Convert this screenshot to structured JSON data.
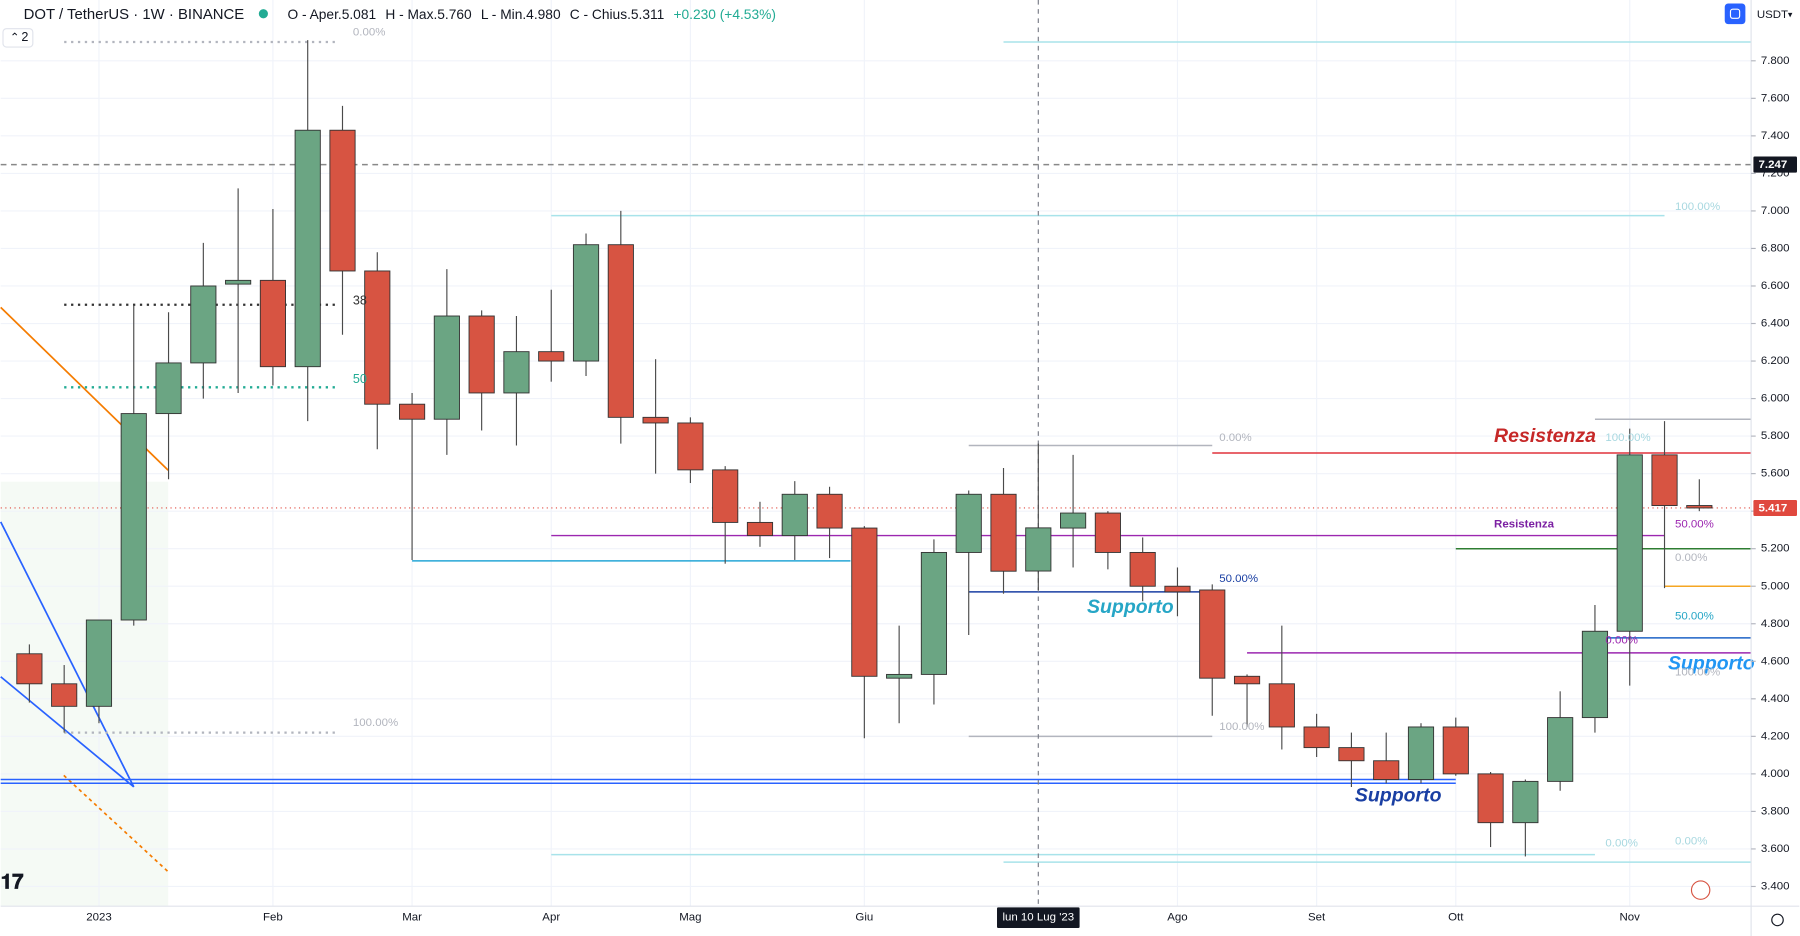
{
  "header": {
    "symbol": "DOT / TetherUS · 1W · BINANCE",
    "ohlc": [
      "O - Aper.5.081",
      "H - Max.5.760",
      "L - Min.4.980",
      "C - Chius.5.311",
      "+0.230 (+4.53%)"
    ],
    "indicator_count": "2",
    "currency": "USDT"
  },
  "chart_data": {
    "type": "candlestick",
    "categories": [
      null,
      null,
      "2023",
      null,
      null,
      null,
      null,
      "Feb",
      null,
      null,
      null,
      "Mar",
      null,
      null,
      null,
      "Apr",
      null,
      null,
      null,
      "Mag",
      null,
      null,
      null,
      null,
      "Giu",
      null,
      null,
      null,
      null,
      null,
      null,
      null,
      null,
      "Ago",
      null,
      null,
      null,
      "Set",
      null,
      null,
      null,
      "Ott",
      null,
      null,
      null,
      null,
      "Nov",
      null,
      null
    ],
    "open": [
      4.64,
      4.48,
      4.36,
      4.82,
      5.92,
      6.19,
      6.61,
      6.63,
      6.17,
      7.43,
      6.68,
      5.97,
      5.89,
      6.44,
      6.03,
      6.25,
      6.2,
      6.82,
      5.9,
      5.87,
      5.62,
      5.34,
      5.27,
      5.49,
      5.31,
      4.51,
      4.53,
      5.18,
      5.49,
      5.081,
      5.31,
      5.39,
      5.18,
      5.0,
      4.98,
      4.52,
      4.48,
      4.25,
      4.14,
      4.07,
      3.97,
      4.25,
      4.0,
      3.74,
      3.96,
      4.3,
      4.76,
      5.7,
      5.43
    ],
    "high": [
      4.69,
      4.58,
      4.82,
      6.5,
      6.46,
      6.83,
      7.12,
      7.01,
      7.91,
      7.56,
      6.78,
      6.03,
      6.69,
      6.47,
      6.44,
      6.58,
      6.88,
      7.0,
      6.21,
      5.9,
      5.64,
      5.45,
      5.56,
      5.53,
      5.32,
      4.79,
      5.25,
      5.51,
      5.63,
      5.76,
      5.7,
      5.4,
      5.26,
      5.1,
      5.01,
      4.53,
      4.79,
      4.32,
      4.22,
      4.22,
      4.27,
      4.3,
      4.01,
      3.97,
      4.44,
      4.9,
      5.84,
      5.88,
      5.57
    ],
    "low": [
      4.38,
      4.22,
      4.27,
      4.79,
      5.57,
      6.0,
      6.03,
      6.07,
      5.88,
      6.34,
      5.73,
      5.14,
      5.7,
      5.83,
      5.75,
      6.09,
      6.12,
      5.76,
      5.6,
      5.55,
      5.12,
      5.21,
      5.14,
      5.15,
      4.19,
      4.27,
      4.37,
      4.74,
      4.96,
      4.98,
      5.1,
      5.09,
      4.92,
      4.84,
      4.31,
      4.25,
      4.13,
      4.09,
      3.93,
      3.95,
      3.95,
      3.99,
      3.61,
      3.56,
      3.91,
      4.22,
      4.47,
      4.99,
      5.4
    ],
    "close": [
      4.48,
      4.36,
      4.82,
      5.92,
      6.19,
      6.6,
      6.63,
      6.17,
      7.43,
      6.68,
      5.97,
      5.89,
      6.44,
      6.03,
      6.25,
      6.2,
      6.82,
      5.9,
      5.87,
      5.62,
      5.34,
      5.27,
      5.49,
      5.31,
      4.52,
      4.53,
      5.18,
      5.49,
      5.08,
      5.311,
      5.39,
      5.18,
      5.0,
      4.97,
      4.51,
      4.48,
      4.25,
      4.14,
      4.07,
      3.97,
      4.25,
      4.0,
      3.74,
      3.96,
      4.3,
      4.76,
      5.7,
      5.43,
      5.417
    ],
    "up_color": "#6ba583",
    "down_color": "#d75442",
    "ylim": [
      3.295,
      8.124
    ],
    "yticks": [
      {
        "value": 3.4,
        "label": "3.400"
      },
      {
        "value": 3.6,
        "label": "3.600"
      },
      {
        "value": 3.8,
        "label": "3.800"
      },
      {
        "value": 4.0,
        "label": "4.000"
      },
      {
        "value": 4.2,
        "label": "4.200"
      },
      {
        "value": 4.4,
        "label": "4.400"
      },
      {
        "value": 4.6,
        "label": "4.600"
      },
      {
        "value": 4.8,
        "label": "4.800"
      },
      {
        "value": 5.0,
        "label": "5.000"
      },
      {
        "value": 5.2,
        "label": "5.200"
      },
      {
        "value": 5.4,
        "label": "5.400"
      },
      {
        "value": 5.6,
        "label": "5.600"
      },
      {
        "value": 5.8,
        "label": "5.800"
      },
      {
        "value": 6.0,
        "label": "6.000"
      },
      {
        "value": 6.2,
        "label": "6.200"
      },
      {
        "value": 6.4,
        "label": "6.400"
      },
      {
        "value": 6.6,
        "label": "6.600"
      },
      {
        "value": 6.8,
        "label": "6.800"
      },
      {
        "value": 7.0,
        "label": "7.000"
      },
      {
        "value": 7.2,
        "label": "7.200"
      },
      {
        "value": 7.4,
        "label": "7.400"
      },
      {
        "value": 7.6,
        "label": "7.600"
      },
      {
        "value": 7.8,
        "label": "7.800"
      }
    ],
    "grid": true,
    "last_price": {
      "value": 5.417,
      "label": "5.417",
      "color": "#e0483e"
    },
    "price_marker": {
      "value": 7.247,
      "label": "7.247",
      "color": "#131722"
    },
    "crosshair": {
      "index": 29,
      "label": "lun 10 Lug '23"
    },
    "drawings": [
      {
        "price": 7.9,
        "from": 28,
        "to": 49.5,
        "color": "#a8e3ea",
        "dash": "solid"
      },
      {
        "price": 6.975,
        "from": 15,
        "to": 47,
        "color": "#a8e3ea",
        "dash": "solid"
      },
      {
        "price": 5.71,
        "from": 34,
        "to": 49.5,
        "color": "#e0323c",
        "dash": "solid"
      },
      {
        "price": 5.27,
        "from": 15,
        "to": 47,
        "color": "#9c27b0",
        "dash": "solid"
      },
      {
        "price": 5.2,
        "from": 41,
        "to": 49.5,
        "color": "#2e7d32",
        "dash": "solid"
      },
      {
        "price": 5.0,
        "from": 47,
        "to": 49.5,
        "color": "#f5a623",
        "dash": "solid"
      },
      {
        "price": 4.97,
        "from": 27,
        "to": 34,
        "color": "#1a3fa3",
        "dash": "solid"
      },
      {
        "price": 4.645,
        "from": 35,
        "to": 49.5,
        "color": "#9c27b0",
        "dash": "solid"
      },
      {
        "price": 4.725,
        "from": 45,
        "to": 49.5,
        "color": "#1e63c6",
        "dash": "solid"
      },
      {
        "price": 5.135,
        "from": 11,
        "to": 23.6,
        "color": "#26a6d6",
        "dash": "solid"
      },
      {
        "price": 3.97,
        "from": -0.9,
        "to": 41,
        "color": "#2962ff",
        "dash": "solid"
      },
      {
        "price": 3.95,
        "from": -0.9,
        "to": 41,
        "color": "#2962ff",
        "dash": "solid"
      },
      {
        "price": 3.57,
        "from": 15,
        "to": 45,
        "color": "#a8e3ea",
        "dash": "solid"
      },
      {
        "price": 3.53,
        "from": 28,
        "to": 49.5,
        "color": "#a8e3ea",
        "dash": "solid"
      },
      {
        "price": 5.75,
        "from": 27,
        "to": 34,
        "color": "#b2b5be",
        "dash": "solid"
      },
      {
        "price": 4.2,
        "from": 27,
        "to": 34,
        "color": "#b2b5be",
        "dash": "solid"
      },
      {
        "price": 5.89,
        "from": 45,
        "to": 49.5,
        "color": "#b2b5be",
        "dash": "solid"
      },
      {
        "price": 6.5,
        "from": 1,
        "to": 8.8,
        "color": "#333333",
        "dash": "dotted"
      },
      {
        "price": 6.06,
        "from": 1,
        "to": 8.8,
        "color": "#22ab94",
        "dash": "dotted"
      },
      {
        "price": 7.9,
        "from": 1,
        "to": 8.8,
        "color": "#b2b5be",
        "dash": "dotted"
      },
      {
        "price": 4.22,
        "from": 1,
        "to": 8.8,
        "color": "#b2b5be",
        "dash": "dotted"
      },
      {
        "price": 7.247,
        "from": -0.9,
        "to": 49.5,
        "color": "#888888",
        "dash": "dashed"
      }
    ],
    "annotations": [
      {
        "text": "Resistenza",
        "x": 42.1,
        "price": 5.795,
        "color": "#c62828",
        "emphasis": true
      },
      {
        "text": "Resistenza",
        "x": 42.1,
        "price": 5.33,
        "color": "#7b1fa2",
        "emphasis": false
      },
      {
        "text": "Supporto",
        "x": 30.4,
        "price": 4.885,
        "color": "#26a6c6",
        "emphasis": true
      },
      {
        "text": "Supporto",
        "x": 38.1,
        "price": 3.88,
        "color": "#1a3fa3",
        "emphasis": true
      },
      {
        "text": "Supporto",
        "x": 47.1,
        "price": 4.585,
        "color": "#2196f3",
        "emphasis": true
      },
      {
        "text": "0.00%",
        "x": 9.3,
        "price": 7.95,
        "color": "#b2b5be",
        "emphasis": false
      },
      {
        "text": "38",
        "x": 9.3,
        "price": 6.52,
        "color": "#333333",
        "emphasis": false
      },
      {
        "text": "50",
        "x": 9.3,
        "price": 6.1,
        "color": "#22ab94",
        "emphasis": false
      },
      {
        "text": "100.00%",
        "x": 9.3,
        "price": 4.27,
        "color": "#b2b5be",
        "emphasis": false
      },
      {
        "text": "0.00%",
        "x": 34.2,
        "price": 5.79,
        "color": "#b2b5be",
        "emphasis": false
      },
      {
        "text": "50.00%",
        "x": 34.2,
        "price": 5.04,
        "color": "#1a3fa3",
        "emphasis": false
      },
      {
        "text": "100.00%",
        "x": 34.2,
        "price": 4.25,
        "color": "#b2b5be",
        "emphasis": false
      },
      {
        "text": "100.00%",
        "x": 47.3,
        "price": 7.02,
        "color": "#a8d8e0",
        "emphasis": false
      },
      {
        "text": "100.00%",
        "x": 45.3,
        "price": 5.79,
        "color": "#a8d8e0",
        "emphasis": false
      },
      {
        "text": "50.00%",
        "x": 47.3,
        "price": 5.33,
        "color": "#9c27b0",
        "emphasis": false
      },
      {
        "text": "0.00%",
        "x": 47.3,
        "price": 5.15,
        "color": "#b2b5be",
        "emphasis": false
      },
      {
        "text": "50.00%",
        "x": 47.3,
        "price": 4.84,
        "color": "#26a6c6",
        "emphasis": false
      },
      {
        "text": "0.00%",
        "x": 45.3,
        "price": 4.71,
        "color": "#9c27b0",
        "emphasis": false
      },
      {
        "text": "100.00%",
        "x": 47.3,
        "price": 4.54,
        "color": "#b2b5be",
        "emphasis": false
      },
      {
        "text": "0.00%",
        "x": 45.3,
        "price": 3.63,
        "color": "#a8d8e0",
        "emphasis": false
      },
      {
        "text": "0.00%",
        "x": 47.3,
        "price": 3.64,
        "color": "#a8d8e0",
        "emphasis": false
      }
    ]
  }
}
